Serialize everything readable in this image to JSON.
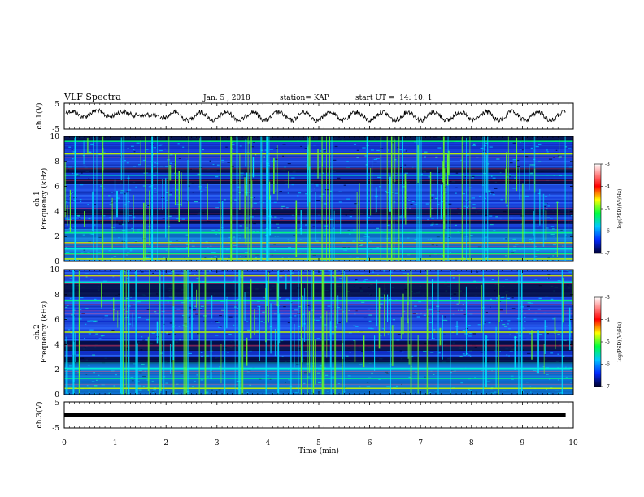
{
  "header": {
    "title": "VLF Spectra",
    "date": "Jan. 5 , 2018",
    "station": "station= KAP",
    "start_time": "start UT =  14: 10: 1"
  },
  "chart_data": [
    {
      "type": "line",
      "panel": "ch1-waveform",
      "ylabel": "ch.1(V)",
      "xlim": [
        0,
        10
      ],
      "ylim": [
        -5,
        5
      ],
      "y_ticks": [
        "5",
        "-5"
      ],
      "description_values": {
        "period_min": 0.51,
        "amplitude_v": 1.6,
        "x_end": 9.85
      }
    },
    {
      "type": "heatmap",
      "panel": "ch1-spectrogram",
      "ylabel_top": "ch.1",
      "ylabel": "Frequency (kHz)",
      "xlim": [
        0,
        10
      ],
      "ylim": [
        0,
        10
      ],
      "y_ticks": [
        "0",
        "2",
        "4",
        "6",
        "8",
        "10"
      ],
      "colorbar": {
        "label": "log(PSD)(V²/Hz)",
        "range": [
          -7,
          -3
        ],
        "ticks": [
          "-3",
          "-4",
          "-5",
          "-6",
          "-7"
        ]
      },
      "dark_bands_khz": [
        [
          9.6,
          10.0
        ],
        [
          7.1,
          7.5
        ],
        [
          6.2,
          6.6
        ],
        [
          3.7,
          4.2
        ],
        [
          3.0,
          3.3
        ]
      ],
      "bright_lines_khz": [
        0.2,
        0.6,
        1.0,
        1.5,
        2.3,
        6.9,
        8.6,
        9.6
      ]
    },
    {
      "type": "heatmap",
      "panel": "ch2-spectrogram",
      "ylabel_top": "ch.2",
      "ylabel": "Frequency (kHz)",
      "xlim": [
        0,
        10
      ],
      "ylim": [
        0,
        10
      ],
      "y_ticks": [
        "0",
        "2",
        "4",
        "6",
        "8",
        "10"
      ],
      "colorbar": {
        "label": "log(PSD)(V²/Hz)",
        "range": [
          -7,
          -3
        ],
        "ticks": [
          "-3",
          "-4",
          "-5",
          "-6",
          "-7"
        ]
      },
      "dark_bands_khz": [
        [
          7.8,
          9.0
        ],
        [
          3.5,
          4.3
        ],
        [
          2.5,
          3.0
        ]
      ],
      "bright_lines_khz": [
        0.5,
        1.3,
        2.1,
        5.0,
        7.5,
        9.0,
        9.5
      ]
    },
    {
      "type": "line",
      "panel": "ch3-waveform",
      "ylabel": "ch.3(V)",
      "xlabel": "Time (min)",
      "xlim": [
        0,
        10
      ],
      "ylim": [
        -5,
        5
      ],
      "y_ticks": [
        "5",
        "-5"
      ],
      "x_ticks": [
        "0",
        "1",
        "2",
        "3",
        "4",
        "5",
        "6",
        "7",
        "8",
        "9",
        "10"
      ],
      "x": [
        0,
        9.85
      ],
      "y": [
        0,
        0
      ]
    }
  ]
}
